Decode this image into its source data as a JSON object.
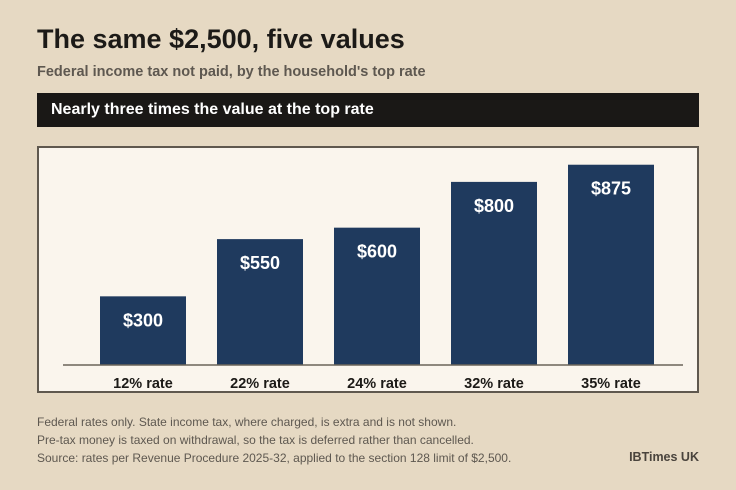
{
  "header": {
    "title": "The same $2,500, five values",
    "subtitle": "Federal income tax not paid, by the household's top rate"
  },
  "banner": {
    "text": "Nearly three times the value at the top rate"
  },
  "chart_data": {
    "type": "bar",
    "categories": [
      "12% rate",
      "22% rate",
      "24% rate",
      "32% rate",
      "35% rate"
    ],
    "values": [
      300,
      550,
      600,
      800,
      875
    ],
    "value_labels": [
      "$300",
      "$550",
      "$600",
      "$800",
      "$875"
    ],
    "ylim": [
      0,
      900
    ],
    "grid": false,
    "legend": "none",
    "bar_color": "#1f3a5e"
  },
  "footer": {
    "notes": [
      "Federal rates only. State income tax, where charged, is extra and is not shown.",
      "Pre-tax money is taxed on withdrawal, so the tax is deferred rather than cancelled.",
      "Source: rates per Revenue Procedure 2025-32, applied to the section 128 limit of $2,500."
    ],
    "credit": "IBTimes UK"
  }
}
